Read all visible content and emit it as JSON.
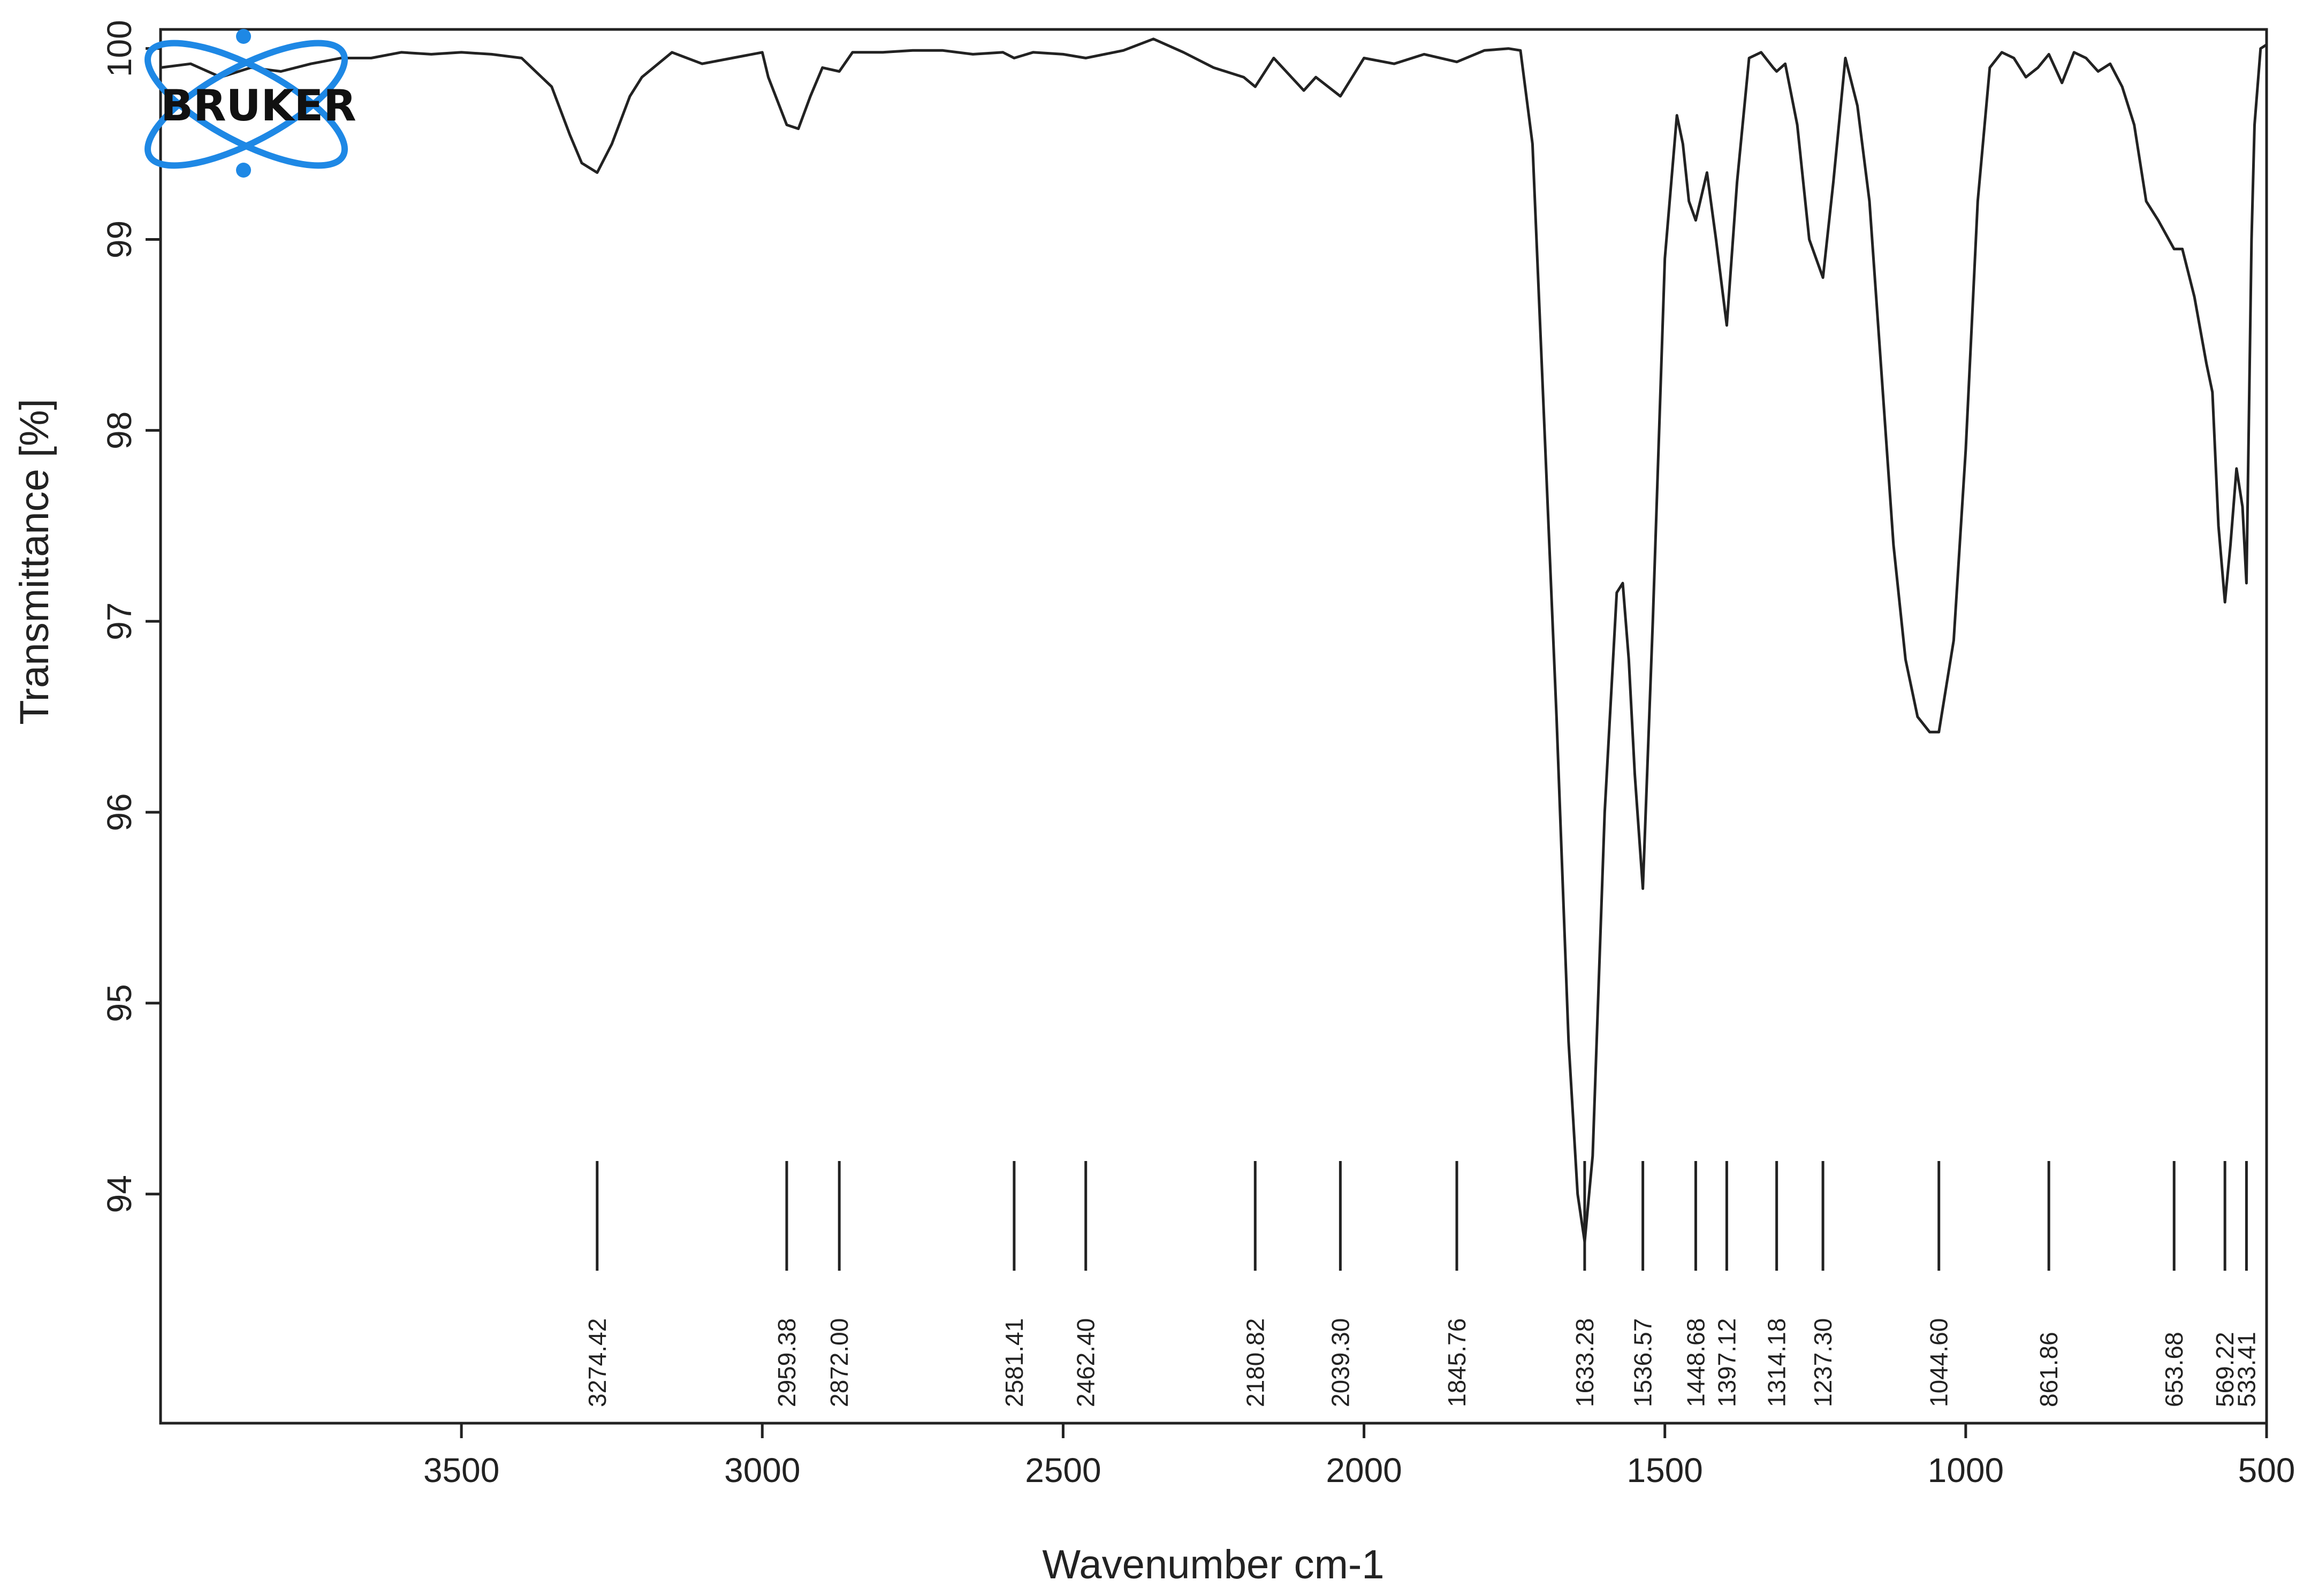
{
  "logo": {
    "text": "BRUKER",
    "color": "#1e88e5"
  },
  "chart_data": {
    "type": "line",
    "title": "",
    "xlabel": "Wavenumber cm-1",
    "ylabel": "Transmittance [%]",
    "xlim": [
      4000,
      500
    ],
    "x_reversed": true,
    "ylim": [
      92.8,
      100.1
    ],
    "xticks": [
      3500,
      3000,
      2500,
      2000,
      1500,
      1000,
      500
    ],
    "yticks": [
      94,
      95,
      96,
      97,
      98,
      99,
      100
    ],
    "grid": false,
    "line_color": "#222222",
    "series": [
      {
        "x": [
          4000,
          3950,
          3900,
          3850,
          3800,
          3750,
          3700,
          3650,
          3600,
          3550,
          3500,
          3450,
          3400,
          3350,
          3320,
          3300,
          3274.42,
          3250,
          3220,
          3200,
          3150,
          3100,
          3050,
          3000,
          2990,
          2959.38,
          2940,
          2920,
          2900,
          2872.0,
          2850,
          2800,
          2750,
          2700,
          2650,
          2600,
          2581.41,
          2550,
          2500,
          2462.4,
          2400,
          2350,
          2300,
          2250,
          2200,
          2180.82,
          2150,
          2100,
          2080,
          2039.3,
          2000,
          1950,
          1900,
          1845.76,
          1800,
          1760,
          1740,
          1720,
          1700,
          1680,
          1660,
          1645,
          1633.28,
          1620,
          1600,
          1580,
          1570,
          1560,
          1550,
          1536.57,
          1520,
          1500,
          1480,
          1470,
          1460,
          1448.68,
          1430,
          1415,
          1397.12,
          1380,
          1360,
          1340,
          1320,
          1314.18,
          1300,
          1280,
          1260,
          1237.3,
          1220,
          1200,
          1180,
          1160,
          1140,
          1120,
          1100,
          1080,
          1060,
          1044.6,
          1020,
          1000,
          980,
          960,
          940,
          920,
          900,
          880,
          861.86,
          840,
          820,
          800,
          780,
          760,
          740,
          720,
          700,
          680,
          653.68,
          640,
          620,
          600,
          590,
          580,
          569.22,
          560,
          550,
          540,
          533.41,
          525,
          520,
          510,
          500
        ],
        "y": [
          99.9,
          99.92,
          99.85,
          99.9,
          99.88,
          99.92,
          99.95,
          99.95,
          99.98,
          99.97,
          99.98,
          99.97,
          99.95,
          99.8,
          99.55,
          99.4,
          99.35,
          99.5,
          99.75,
          99.85,
          99.98,
          99.92,
          99.95,
          99.98,
          99.85,
          99.6,
          99.58,
          99.75,
          99.9,
          99.88,
          99.98,
          99.98,
          99.99,
          99.99,
          99.97,
          99.98,
          99.95,
          99.98,
          99.97,
          99.95,
          99.99,
          100.05,
          99.98,
          99.9,
          99.85,
          99.8,
          99.95,
          99.78,
          99.85,
          99.75,
          99.95,
          99.92,
          99.97,
          99.93,
          99.99,
          100.0,
          99.99,
          99.5,
          98.0,
          96.5,
          94.8,
          94.0,
          93.75,
          94.2,
          96.0,
          97.15,
          97.2,
          96.8,
          96.2,
          95.6,
          97.0,
          98.9,
          99.65,
          99.5,
          99.2,
          99.1,
          99.35,
          99.0,
          98.55,
          99.3,
          99.95,
          99.98,
          99.9,
          99.88,
          99.92,
          99.6,
          99.0,
          98.8,
          99.3,
          99.95,
          99.7,
          99.2,
          98.3,
          97.4,
          96.8,
          96.5,
          96.42,
          96.42,
          96.9,
          97.9,
          99.2,
          99.9,
          99.98,
          99.95,
          99.85,
          99.9,
          99.97,
          99.82,
          99.98,
          99.95,
          99.88,
          99.92,
          99.8,
          99.6,
          99.2,
          99.1,
          98.95,
          98.95,
          98.7,
          98.35,
          98.2,
          97.5,
          97.1,
          97.4,
          97.8,
          97.6,
          97.2,
          99.0,
          99.6,
          100.0,
          100.02
        ]
      }
    ],
    "peak_labels": [
      "3274.42",
      "2959.38",
      "2872.00",
      "2581.41",
      "2462.40",
      "2180.82",
      "2039.30",
      "1845.76",
      "1633.28",
      "1536.57",
      "1448.68",
      "1397.12",
      "1314.18",
      "1237.30",
      "1044.60",
      "861.86",
      "653.68",
      "569.22",
      "533.41"
    ]
  }
}
